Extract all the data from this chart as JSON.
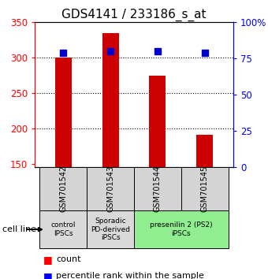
{
  "title": "GDS4141 / 233186_s_at",
  "samples": [
    "GSM701542",
    "GSM701543",
    "GSM701544",
    "GSM701545"
  ],
  "counts": [
    300,
    335,
    275,
    191
  ],
  "percentiles": [
    79,
    80,
    80,
    79
  ],
  "ylim_left": [
    145,
    350
  ],
  "ylim_right": [
    0,
    100
  ],
  "yticks_left": [
    150,
    200,
    250,
    300,
    350
  ],
  "yticks_right": [
    0,
    25,
    50,
    75,
    100
  ],
  "bar_color": "#cc0000",
  "marker_color": "#0000cc",
  "bar_width": 0.35,
  "groups": [
    {
      "label": "control\nIPSCs",
      "indices": [
        0
      ],
      "color": "#d9d9d9"
    },
    {
      "label": "Sporadic\nPD-derived\niPSCs",
      "indices": [
        1
      ],
      "color": "#d9d9d9"
    },
    {
      "label": "presenilin 2 (PS2)\niPSCs",
      "indices": [
        2,
        3
      ],
      "color": "#90ee90"
    }
  ],
  "cell_line_label": "cell line",
  "legend_count_label": "count",
  "legend_pct_label": "percentile rank within the sample",
  "bg_color": "#ffffff",
  "title_fontsize": 11,
  "tick_fontsize": 8.5,
  "sample_fontsize": 7,
  "group_fontsize": 6.5
}
